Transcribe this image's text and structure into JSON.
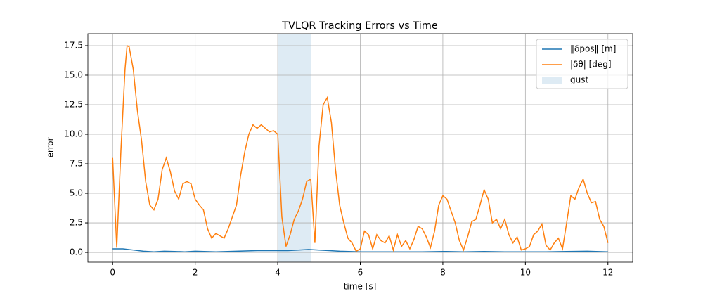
{
  "chart_data": {
    "type": "line",
    "title": "TVLQR Tracking Errors vs Time",
    "x_label": "time [s]",
    "y_label": "error",
    "xlim": [
      -0.6,
      12.6
    ],
    "ylim": [
      -0.83,
      18.51
    ],
    "xticks": [
      0,
      2,
      4,
      6,
      8,
      10,
      12
    ],
    "yticks": [
      {
        "value": 0,
        "label": "0.0"
      },
      {
        "value": 2.5,
        "label": "2.5"
      },
      {
        "value": 5,
        "label": "5.0"
      },
      {
        "value": 7.5,
        "label": "7.5"
      },
      {
        "value": 10,
        "label": "10.0"
      },
      {
        "value": 12.5,
        "label": "12.5"
      },
      {
        "value": 15,
        "label": "15.0"
      },
      {
        "value": 17.5,
        "label": "17.5"
      }
    ],
    "grid": true,
    "legend": "upper right",
    "span": {
      "name": "gust",
      "x": [
        4,
        4.8
      ],
      "color": "#1f77b4"
    },
    "series": [
      {
        "name": "‖δpos‖ [m]",
        "color": "#1f77b4",
        "x": [
          0,
          0.25,
          0.5,
          0.75,
          1,
          1.25,
          1.5,
          1.75,
          2,
          2.5,
          3,
          3.5,
          4,
          4.25,
          4.5,
          4.75,
          5,
          5.25,
          5.5,
          6,
          6.5,
          7,
          7.5,
          8,
          8.5,
          9,
          9.5,
          10,
          10.5,
          11,
          11.5,
          12
        ],
        "values": [
          0.3,
          0.3,
          0.2,
          0.1,
          0.05,
          0.1,
          0.08,
          0.05,
          0.1,
          0.05,
          0.1,
          0.15,
          0.15,
          0.15,
          0.2,
          0.25,
          0.2,
          0.15,
          0.1,
          0.05,
          0.05,
          0.05,
          0.05,
          0.08,
          0.05,
          0.08,
          0.05,
          0.05,
          0.05,
          0.08,
          0.1,
          0.05
        ]
      },
      {
        "name": "|δθ| [deg]",
        "color": "#ff7f0e",
        "x": [
          0,
          0.1,
          0.2,
          0.3,
          0.35,
          0.4,
          0.5,
          0.6,
          0.7,
          0.8,
          0.9,
          1.0,
          1.1,
          1.2,
          1.3,
          1.4,
          1.5,
          1.6,
          1.7,
          1.8,
          1.9,
          2.0,
          2.1,
          2.2,
          2.3,
          2.4,
          2.5,
          2.6,
          2.7,
          2.8,
          2.9,
          3.0,
          3.1,
          3.2,
          3.3,
          3.4,
          3.5,
          3.6,
          3.7,
          3.8,
          3.9,
          4.0,
          4.1,
          4.2,
          4.3,
          4.4,
          4.5,
          4.6,
          4.7,
          4.8,
          4.9,
          5.0,
          5.1,
          5.2,
          5.3,
          5.4,
          5.5,
          5.6,
          5.7,
          5.8,
          5.9,
          6.0,
          6.1,
          6.2,
          6.3,
          6.4,
          6.5,
          6.6,
          6.7,
          6.8,
          6.9,
          7.0,
          7.1,
          7.2,
          7.3,
          7.4,
          7.5,
          7.6,
          7.7,
          7.8,
          7.9,
          8.0,
          8.1,
          8.2,
          8.3,
          8.4,
          8.5,
          8.6,
          8.7,
          8.8,
          8.9,
          9.0,
          9.1,
          9.2,
          9.3,
          9.4,
          9.5,
          9.6,
          9.7,
          9.8,
          9.9,
          10.0,
          10.1,
          10.2,
          10.3,
          10.4,
          10.5,
          10.6,
          10.7,
          10.8,
          10.9,
          11.0,
          11.1,
          11.2,
          11.3,
          11.4,
          11.5,
          11.6,
          11.7,
          11.8,
          11.9,
          12.0
        ],
        "values": [
          8.0,
          0.4,
          8.6,
          15.5,
          17.5,
          17.4,
          15.5,
          12,
          9.5,
          6,
          4,
          3.6,
          4.5,
          7,
          8,
          6.8,
          5.2,
          4.5,
          5.8,
          6,
          5.8,
          4.5,
          4,
          3.6,
          2,
          1.2,
          1.6,
          1.4,
          1.2,
          2,
          3,
          4,
          6.5,
          8.5,
          10,
          10.8,
          10.5,
          10.8,
          10.5,
          10.2,
          10.3,
          10,
          3,
          0.5,
          1.5,
          2.8,
          3.5,
          4.5,
          6,
          6.2,
          0.8,
          9,
          12.5,
          13.1,
          11,
          7,
          4,
          2.5,
          1.2,
          0.8,
          0.1,
          0.3,
          1.8,
          1.5,
          0.3,
          1.5,
          1,
          0.8,
          1.4,
          0.2,
          1.5,
          0.5,
          1.0,
          0.3,
          1.1,
          2.2,
          2.0,
          1.3,
          0.4,
          1.8,
          4,
          4.8,
          4.5,
          3.5,
          2.5,
          1,
          0.2,
          1.3,
          2.6,
          2.8,
          4,
          5.3,
          4.5,
          2.5,
          2.8,
          2,
          2.8,
          1.5,
          0.8,
          1.3,
          0.2,
          0.3,
          0.5,
          1.5,
          1.8,
          2.4,
          0.6,
          0.2,
          0.8,
          1.2,
          0.3,
          2.5,
          4.8,
          4.5,
          5.5,
          6.2,
          5,
          4.2,
          4.3,
          2.8,
          2.2,
          0.8
        ]
      }
    ]
  }
}
